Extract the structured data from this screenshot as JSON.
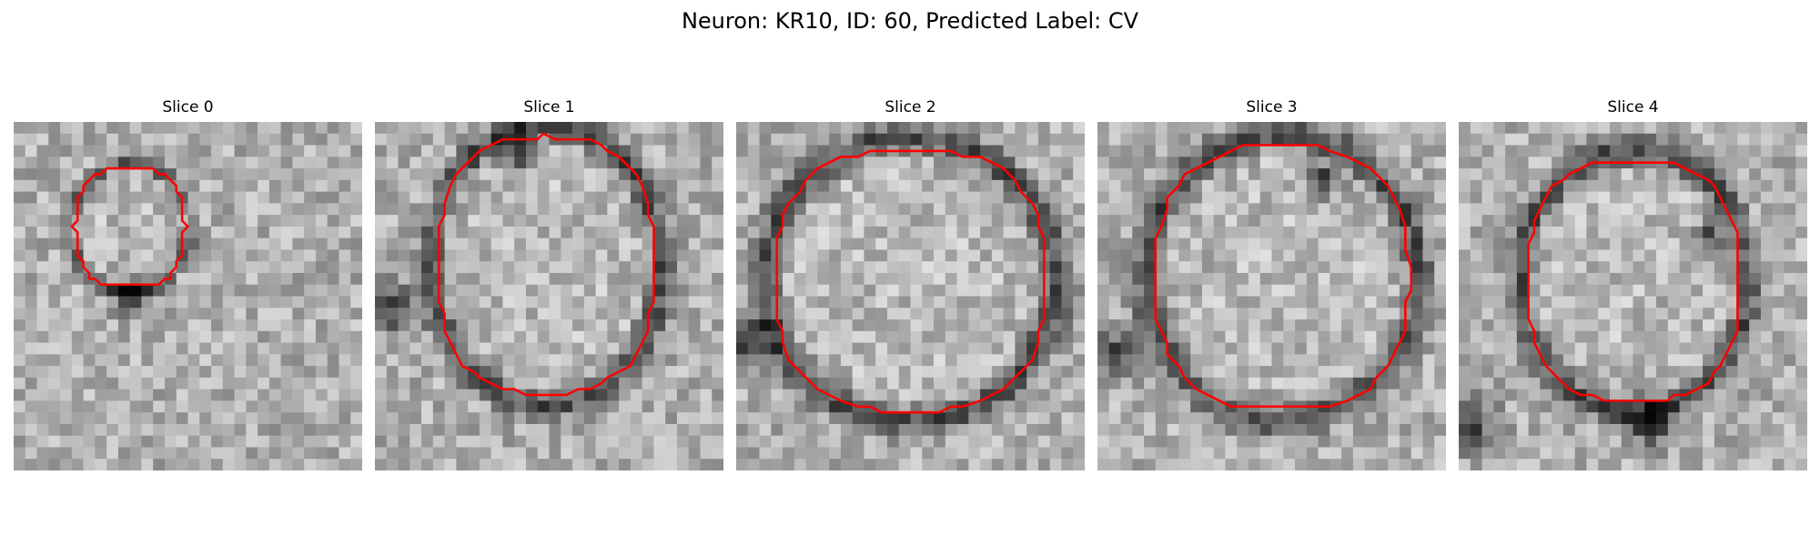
{
  "figure": {
    "title": "Neuron: KR10, ID: 60, Predicted Label: CV"
  },
  "slices": [
    {
      "title": "Slice 0"
    },
    {
      "title": "Slice 1"
    },
    {
      "title": "Slice 2"
    },
    {
      "title": "Slice 3"
    },
    {
      "title": "Slice 4"
    }
  ],
  "colors": {
    "contour": "#ff0000",
    "background": "#ffffff"
  }
}
